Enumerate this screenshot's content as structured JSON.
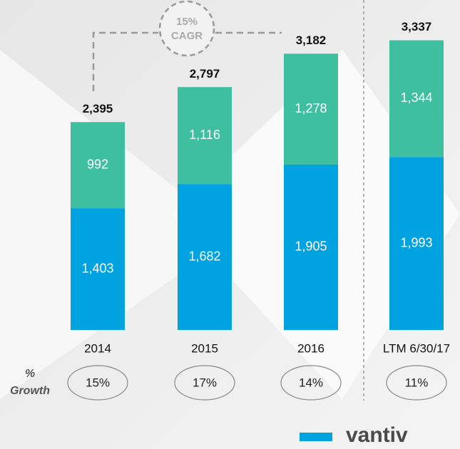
{
  "chart_data": {
    "type": "stacked_bar",
    "categories": [
      "2014",
      "2015",
      "2016",
      "LTM 6/30/17"
    ],
    "series": [
      {
        "color": "#00a3df",
        "values": [
          1403,
          1682,
          1905,
          1993
        ],
        "value_labels": [
          "1,403",
          "1,682",
          "1,905",
          "1,993"
        ]
      },
      {
        "color": "#3dbfa0",
        "values": [
          992,
          1116,
          1278,
          1344
        ],
        "value_labels": [
          "992",
          "1,116",
          "1,278",
          "1,344"
        ]
      }
    ],
    "totals": [
      2395,
      2797,
      3182,
      3337
    ],
    "total_labels": [
      "2,395",
      "2,797",
      "3,182",
      "3,337"
    ],
    "cagr": {
      "label": "15%",
      "text": "CAGR"
    },
    "growth": {
      "label_lines": [
        "%",
        "Growth"
      ],
      "values": [
        15,
        17,
        14,
        11
      ],
      "value_labels": [
        "15%",
        "17%",
        "14%",
        "11%"
      ]
    },
    "logo": "vantiv"
  }
}
